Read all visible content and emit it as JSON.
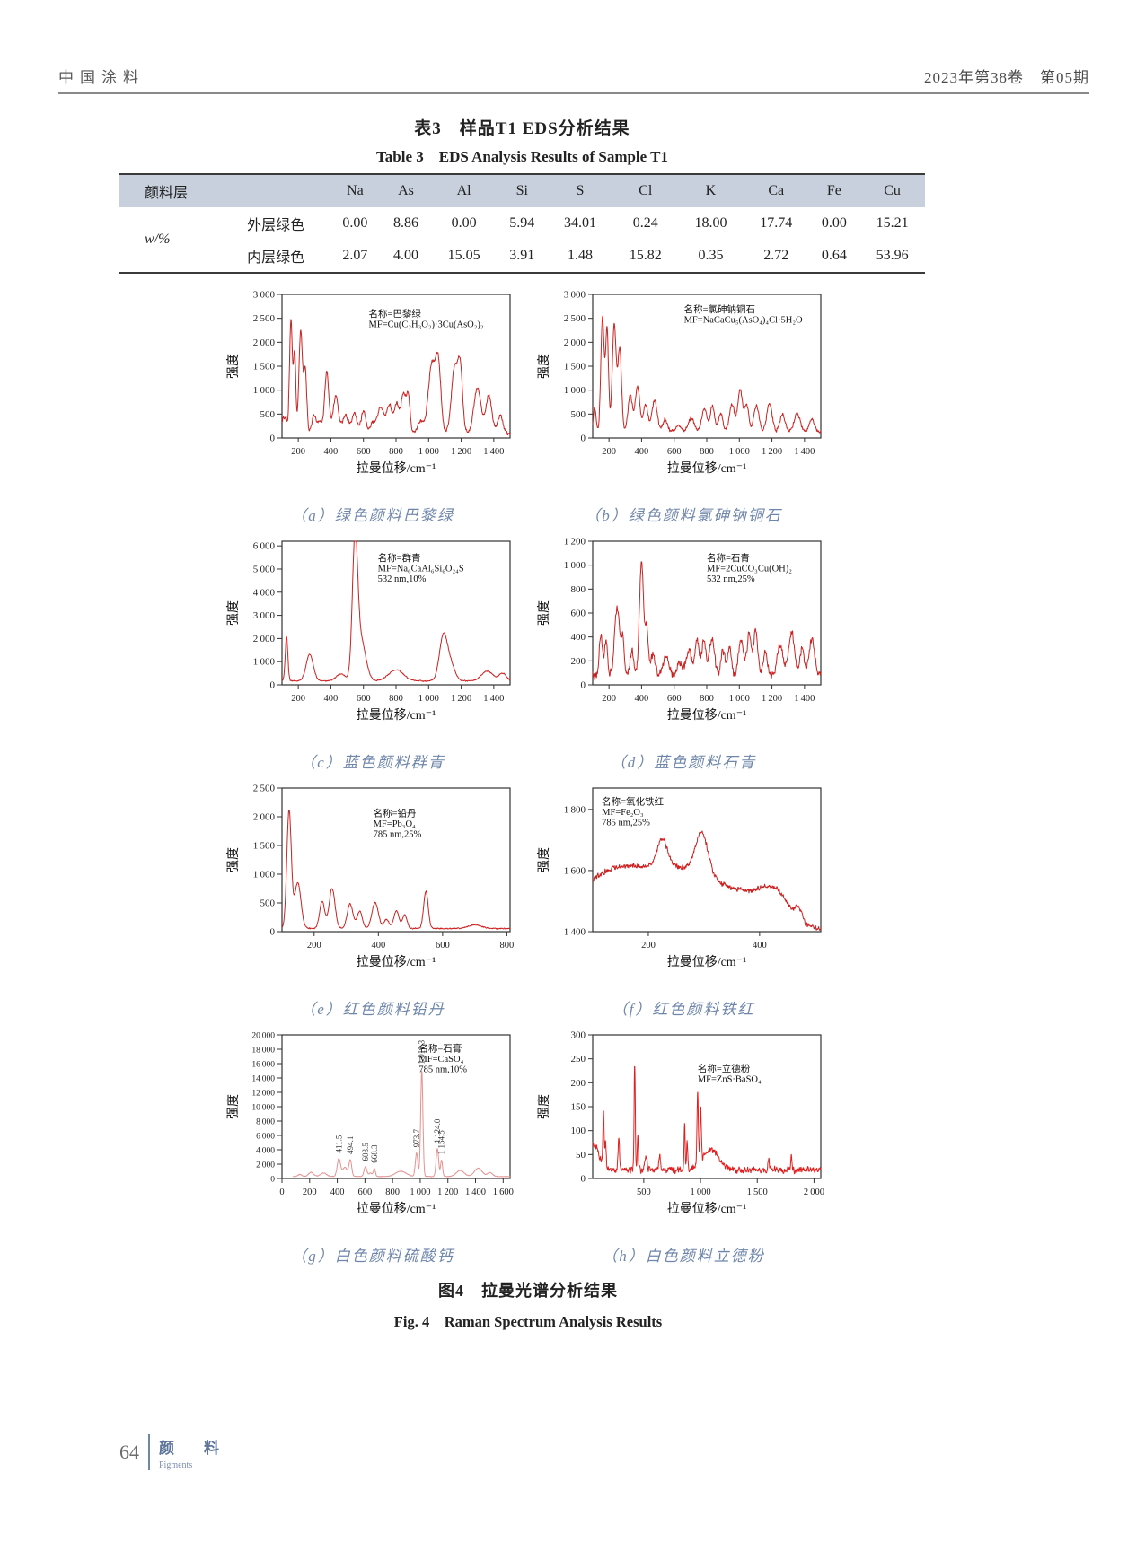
{
  "header": {
    "journal": "中国涂料",
    "issue": "2023年第38卷　第05期"
  },
  "table": {
    "title_zh": "表3　样品T1 EDS分析结果",
    "title_en": "Table 3　EDS Analysis Results of Sample T1",
    "col_header": "颜料层",
    "elements": [
      "Na",
      "As",
      "Al",
      "Si",
      "S",
      "Cl",
      "K",
      "Ca",
      "Fe",
      "Cu"
    ],
    "row_group_label": "w/%",
    "rows": [
      {
        "label": "外层绿色",
        "values": [
          "0.00",
          "8.86",
          "0.00",
          "5.94",
          "34.01",
          "0.24",
          "18.00",
          "17.74",
          "0.00",
          "15.21"
        ]
      },
      {
        "label": "内层绿色",
        "values": [
          "2.07",
          "4.00",
          "15.05",
          "3.91",
          "1.48",
          "15.82",
          "0.35",
          "2.72",
          "0.64",
          "53.96"
        ]
      }
    ]
  },
  "figure": {
    "caption_zh": "图4　拉曼光谱分析结果",
    "caption_en": "Fig. 4　Raman Spectrum Analysis Results"
  },
  "footer": {
    "page": "64",
    "section_zh": "颜　料",
    "section_en": "Pigments"
  },
  "chart_data": [
    {
      "id": "a",
      "type": "line",
      "caption": "（a）绿色颜料巴黎绿",
      "xlabel": "拉曼位移/cm⁻¹",
      "ylabel": "强度",
      "xlim": [
        100,
        1500
      ],
      "xticks": [
        200,
        400,
        600,
        800,
        1000,
        1200,
        1400
      ],
      "ylim": [
        0,
        3000
      ],
      "yticks": [
        0,
        500,
        1000,
        1500,
        2000,
        2500,
        3000
      ],
      "color": "#cc2120",
      "grid": false,
      "legend": "none",
      "annotation": [
        "名称=巴黎绿",
        "MF=Cu(C₂H₃O₂)·3Cu(AsO₂)₂"
      ],
      "annotation_pos": [
        0.38,
        0.1
      ],
      "baseline": 90,
      "noise": 50,
      "seed": 11,
      "peaks": [
        [
          108,
          350,
          8
        ],
        [
          125,
          300,
          6
        ],
        [
          155,
          2380,
          9
        ],
        [
          178,
          1650,
          7
        ],
        [
          215,
          2150,
          11
        ],
        [
          243,
          1300,
          9
        ],
        [
          295,
          380,
          12
        ],
        [
          330,
          260,
          14
        ],
        [
          375,
          1280,
          13
        ],
        [
          430,
          790,
          16
        ],
        [
          490,
          400,
          18
        ],
        [
          545,
          420,
          16
        ],
        [
          600,
          480,
          14
        ],
        [
          655,
          220,
          16
        ],
        [
          705,
          560,
          20
        ],
        [
          760,
          600,
          18
        ],
        [
          805,
          600,
          14
        ],
        [
          845,
          840,
          14
        ],
        [
          875,
          790,
          11
        ],
        [
          950,
          260,
          18
        ],
        [
          1020,
          1450,
          22
        ],
        [
          1060,
          1350,
          16
        ],
        [
          1160,
          1380,
          20
        ],
        [
          1195,
          1250,
          14
        ],
        [
          1300,
          950,
          22
        ],
        [
          1370,
          800,
          18
        ],
        [
          1440,
          400,
          16
        ]
      ],
      "peak_labels": []
    },
    {
      "id": "b",
      "type": "line",
      "caption": "（b）绿色颜料氯砷钠铜石",
      "xlabel": "拉曼位移/cm⁻¹",
      "ylabel": "强度",
      "xlim": [
        100,
        1500
      ],
      "xticks": [
        200,
        400,
        600,
        800,
        1000,
        1200,
        1400
      ],
      "ylim": [
        0,
        3000
      ],
      "yticks": [
        0,
        500,
        1000,
        1500,
        2000,
        2500,
        3000
      ],
      "color": "#cc2120",
      "grid": false,
      "legend": "none",
      "annotation": [
        "名称=氯砷钠铜石",
        "MF=NaCaCu₅(AsO₄)₄Cl·5H₂O"
      ],
      "annotation_pos": [
        0.4,
        0.07
      ],
      "baseline": 130,
      "noise": 50,
      "seed": 22,
      "peaks": [
        [
          112,
          500,
          8
        ],
        [
          160,
          2400,
          10
        ],
        [
          188,
          2150,
          9
        ],
        [
          232,
          2250,
          12
        ],
        [
          266,
          1750,
          11
        ],
        [
          330,
          750,
          14
        ],
        [
          375,
          950,
          14
        ],
        [
          425,
          560,
          14
        ],
        [
          480,
          650,
          16
        ],
        [
          545,
          260,
          14
        ],
        [
          625,
          140,
          18
        ],
        [
          705,
          280,
          18
        ],
        [
          785,
          480,
          16
        ],
        [
          835,
          540,
          13
        ],
        [
          885,
          390,
          13
        ],
        [
          955,
          580,
          16
        ],
        [
          1005,
          900,
          14
        ],
        [
          1045,
          560,
          13
        ],
        [
          1105,
          540,
          16
        ],
        [
          1185,
          580,
          16
        ],
        [
          1265,
          350,
          16
        ],
        [
          1355,
          390,
          18
        ],
        [
          1445,
          260,
          16
        ]
      ],
      "peak_labels": []
    },
    {
      "id": "c",
      "type": "line",
      "caption": "（c）蓝色颜料群青",
      "xlabel": "拉曼位移/cm⁻¹",
      "ylabel": "强度",
      "xlim": [
        100,
        1500
      ],
      "xticks": [
        200,
        400,
        600,
        800,
        1000,
        1200,
        1400
      ],
      "ylim": [
        0,
        6200
      ],
      "yticks": [
        0,
        1000,
        2000,
        3000,
        4000,
        5000,
        6000
      ],
      "color": "#cc2120",
      "grid": false,
      "legend": "none",
      "annotation": [
        "名称=群青",
        "MF=Na₆CaAl₆Si₆O₂₄S",
        "532 nm,10%"
      ],
      "annotation_pos": [
        0.42,
        0.08
      ],
      "baseline": 170,
      "noise": 32,
      "seed": 33,
      "peaks": [
        [
          128,
          1900,
          8
        ],
        [
          270,
          1150,
          22
        ],
        [
          460,
          300,
          28
        ],
        [
          548,
          5600,
          16
        ],
        [
          583,
          1800,
          30
        ],
        [
          800,
          480,
          45
        ],
        [
          1090,
          1900,
          24
        ],
        [
          1135,
          700,
          26
        ],
        [
          1360,
          420,
          35
        ],
        [
          1455,
          330,
          22
        ]
      ],
      "peak_labels": []
    },
    {
      "id": "d",
      "type": "line",
      "caption": "（d）蓝色颜料石青",
      "xlabel": "拉曼位移/cm⁻¹",
      "ylabel": "强度",
      "xlim": [
        100,
        1500
      ],
      "xticks": [
        200,
        400,
        600,
        800,
        1000,
        1200,
        1400
      ],
      "ylim": [
        0,
        1200
      ],
      "yticks": [
        0,
        200,
        400,
        600,
        800,
        1000,
        1200
      ],
      "color": "#cc2120",
      "grid": false,
      "legend": "none",
      "annotation": [
        "名称=石青",
        "MF=2CuCO₃Cu(OH)₂",
        "532 nm,25%"
      ],
      "annotation_pos": [
        0.5,
        0.08
      ],
      "baseline": 70,
      "noise": 42,
      "seed": 44,
      "peaks": [
        [
          150,
          350,
          10
        ],
        [
          182,
          300,
          9
        ],
        [
          250,
          580,
          16
        ],
        [
          285,
          280,
          10
        ],
        [
          340,
          210,
          12
        ],
        [
          400,
          960,
          13
        ],
        [
          432,
          390,
          9
        ],
        [
          470,
          180,
          14
        ],
        [
          550,
          170,
          18
        ],
        [
          635,
          110,
          18
        ],
        [
          690,
          220,
          16
        ],
        [
          740,
          310,
          13
        ],
        [
          782,
          310,
          13
        ],
        [
          832,
          310,
          16
        ],
        [
          900,
          220,
          13
        ],
        [
          940,
          260,
          11
        ],
        [
          1010,
          310,
          16
        ],
        [
          1060,
          350,
          13
        ],
        [
          1100,
          370,
          13
        ],
        [
          1160,
          210,
          13
        ],
        [
          1250,
          260,
          18
        ],
        [
          1320,
          370,
          18
        ],
        [
          1385,
          230,
          13
        ],
        [
          1445,
          300,
          18
        ]
      ],
      "peak_labels": []
    },
    {
      "id": "e",
      "type": "line",
      "caption": "（e）红色颜料铅丹",
      "xlabel": "拉曼位移/cm⁻¹",
      "ylabel": "强度",
      "xlim": [
        100,
        810
      ],
      "xticks": [
        200,
        400,
        600,
        800
      ],
      "ylim": [
        0,
        2500
      ],
      "yticks": [
        0,
        500,
        1000,
        1500,
        2000,
        2500
      ],
      "color": "#cc2120",
      "grid": false,
      "legend": "none",
      "annotation": [
        "名称=铅丹",
        "MF=Pb₃O₄",
        "785 nm,25%"
      ],
      "annotation_pos": [
        0.4,
        0.14
      ],
      "baseline": 55,
      "noise": 14,
      "seed": 55,
      "peaks": [
        [
          122,
          2050,
          7
        ],
        [
          149,
          800,
          10
        ],
        [
          225,
          470,
          8
        ],
        [
          256,
          700,
          9
        ],
        [
          312,
          430,
          9
        ],
        [
          342,
          300,
          8
        ],
        [
          390,
          450,
          10
        ],
        [
          425,
          160,
          8
        ],
        [
          456,
          310,
          8
        ],
        [
          482,
          240,
          7
        ],
        [
          548,
          650,
          7
        ],
        [
          700,
          60,
          20
        ]
      ],
      "peak_labels": []
    },
    {
      "id": "f",
      "type": "line",
      "caption": "（f）红色颜料铁红",
      "xlabel": "拉曼位移/cm⁻¹",
      "ylabel": "强度",
      "xlim": [
        100,
        510
      ],
      "xticks": [
        200,
        400
      ],
      "ylim": [
        1400,
        1870
      ],
      "yticks": [
        1400,
        1600,
        1800
      ],
      "color": "#cc2120",
      "grid": false,
      "legend": "none",
      "annotation": [
        "名称=氧化铁红",
        "MF=Fe₂O₃",
        "785 nm,25%"
      ],
      "annotation_pos": [
        0.04,
        0.06
      ],
      "baseline": 1408,
      "noise": 11,
      "seed": 66,
      "peaks": [
        [
          105,
          80,
          50
        ],
        [
          165,
          120,
          65
        ],
        [
          285,
          170,
          75
        ],
        [
          225,
          90,
          9
        ],
        [
          296,
          135,
          11
        ],
        [
          390,
          40,
          30
        ],
        [
          430,
          90,
          25
        ],
        [
          470,
          40,
          6
        ]
      ],
      "peak_labels": []
    },
    {
      "id": "g",
      "type": "line",
      "caption": "（g）白色颜料硫酸钙",
      "xlabel": "拉曼位移/cm⁻¹",
      "ylabel": "强度",
      "xlim": [
        0,
        1650
      ],
      "xstart": 80,
      "xticks": [
        0,
        200,
        400,
        600,
        800,
        1000,
        1200,
        1400,
        1600
      ],
      "ylim": [
        0,
        20000
      ],
      "yticks": [
        0,
        2000,
        4000,
        6000,
        8000,
        10000,
        12000,
        14000,
        16000,
        18000,
        20000
      ],
      "color": "#e59191",
      "grid": false,
      "legend": "none",
      "annotation": [
        "名称=石膏",
        "MF=CaSO₄",
        "785 nm,10%"
      ],
      "annotation_pos": [
        0.6,
        0.06
      ],
      "baseline": 280,
      "noise": 55,
      "seed": 77,
      "peaks": [
        [
          130,
          320,
          12
        ],
        [
          210,
          580,
          18
        ],
        [
          300,
          480,
          22
        ],
        [
          411.5,
          2500,
          12
        ],
        [
          455,
          1300,
          16
        ],
        [
          494.1,
          2300,
          10
        ],
        [
          603.5,
          1400,
          10
        ],
        [
          640,
          500,
          12
        ],
        [
          668.3,
          1100,
          7
        ],
        [
          860,
          750,
          38
        ],
        [
          973.7,
          3300,
          9
        ],
        [
          1011.3,
          14900,
          8
        ],
        [
          1124,
          3900,
          9
        ],
        [
          1154.5,
          2300,
          7
        ],
        [
          1290,
          850,
          28
        ],
        [
          1420,
          1150,
          28
        ],
        [
          1505,
          550,
          18
        ]
      ],
      "peak_labels": [
        {
          "x": 411.5,
          "text": "411.5"
        },
        {
          "x": 494.1,
          "text": "494.1"
        },
        {
          "x": 603.5,
          "text": "603.5"
        },
        {
          "x": 668.3,
          "text": "668.3"
        },
        {
          "x": 973.7,
          "text": "973.7"
        },
        {
          "x": 1011.3,
          "text": "1 011.3"
        },
        {
          "x": 1124.0,
          "text": "1 124.0"
        },
        {
          "x": 1154.5,
          "text": "1 154.5"
        }
      ]
    },
    {
      "id": "h",
      "type": "line",
      "caption": "（h）白色颜料立德粉",
      "xlabel": "拉曼位移/cm⁻¹",
      "ylabel": "强度",
      "xlim": [
        50,
        2060
      ],
      "xticks": [
        500,
        1000,
        1500,
        2000
      ],
      "ylim": [
        0,
        300
      ],
      "yticks": [
        0,
        50,
        100,
        150,
        200,
        250,
        300
      ],
      "color": "#e01f1f",
      "grid": false,
      "legend": "none",
      "annotation": [
        "名称=立德粉",
        "MF=ZnS·BaSO₄"
      ],
      "annotation_pos": [
        0.46,
        0.2
      ],
      "baseline": 18,
      "noise": 9,
      "seed": 88,
      "peaks": [
        [
          60,
          55,
          45
        ],
        [
          145,
          115,
          5
        ],
        [
          163,
          55,
          6
        ],
        [
          280,
          72,
          6
        ],
        [
          420,
          232,
          5
        ],
        [
          447,
          75,
          5
        ],
        [
          520,
          25,
          10
        ],
        [
          640,
          30,
          8
        ],
        [
          860,
          110,
          4
        ],
        [
          882,
          60,
          5
        ],
        [
          975,
          155,
          6
        ],
        [
          1002,
          115,
          5
        ],
        [
          1090,
          42,
          70
        ],
        [
          1600,
          28,
          6
        ],
        [
          1800,
          38,
          5
        ]
      ],
      "peak_labels": []
    }
  ]
}
